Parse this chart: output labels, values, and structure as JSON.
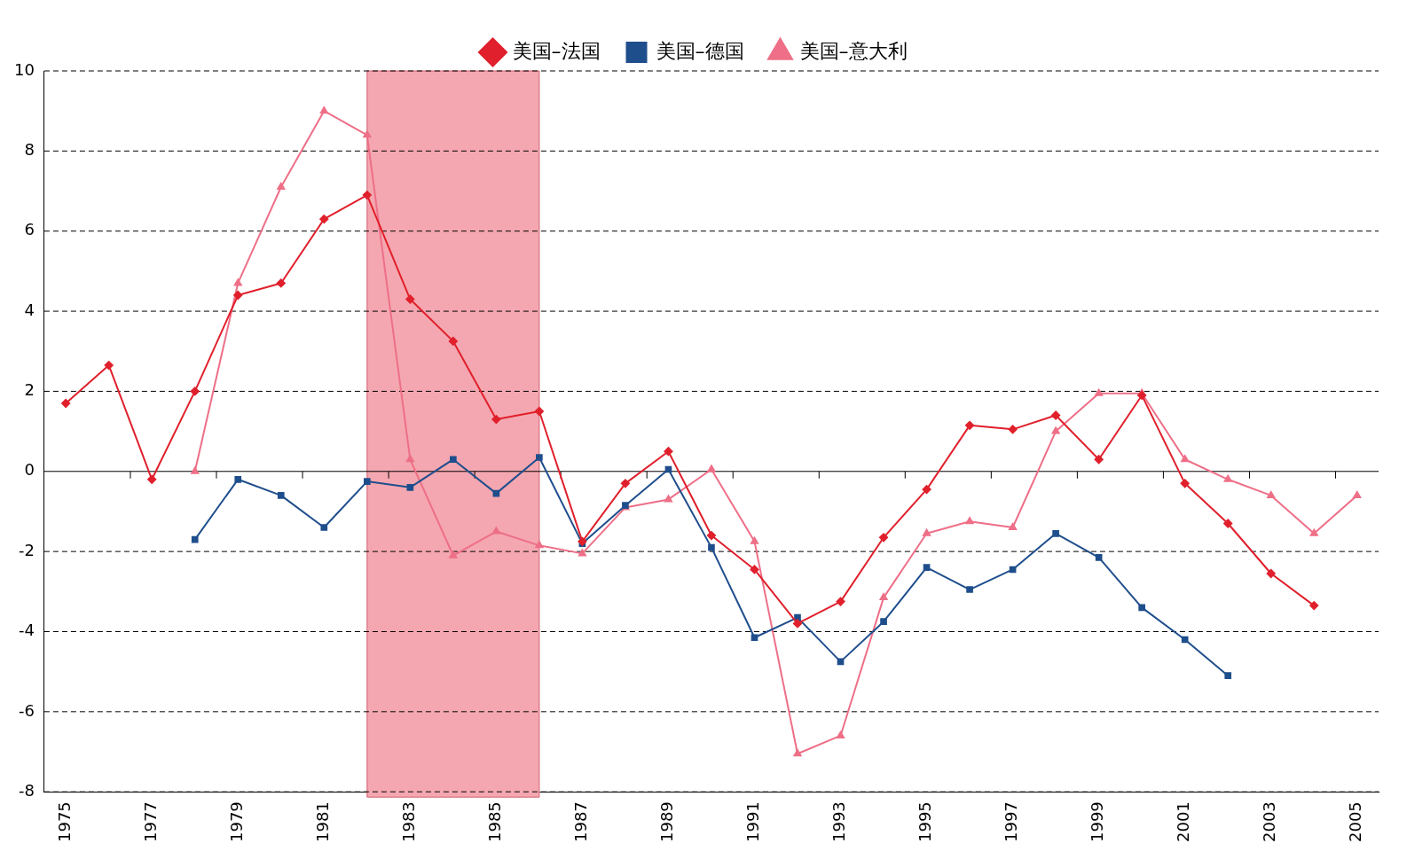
{
  "chart_data": {
    "type": "line",
    "x": [
      1975,
      1976,
      1977,
      1978,
      1979,
      1980,
      1981,
      1982,
      1983,
      1984,
      1985,
      1986,
      1987,
      1988,
      1989,
      1990,
      1991,
      1992,
      1993,
      1994,
      1995,
      1996,
      1997,
      1998,
      1999,
      2000,
      2001,
      2002,
      2003,
      2004,
      2005
    ],
    "series": [
      {
        "name": "美国–法国",
        "color": "#e0202c",
        "marker": "diamond",
        "values": [
          1.7,
          2.65,
          -0.2,
          2.0,
          4.4,
          4.7,
          6.3,
          6.9,
          4.3,
          3.25,
          1.3,
          1.5,
          -1.75,
          -0.3,
          0.5,
          -1.6,
          -2.45,
          -3.8,
          -3.25,
          -1.65,
          -0.45,
          1.15,
          1.05,
          1.4,
          0.3,
          1.9,
          -0.3,
          -1.3,
          -2.55,
          -3.35,
          null
        ]
      },
      {
        "name": "美国–德国",
        "color": "#1f4e8c",
        "marker": "square",
        "values": [
          null,
          null,
          null,
          -1.7,
          -0.2,
          -0.6,
          -1.4,
          -0.25,
          -0.4,
          0.3,
          -0.55,
          0.35,
          -1.8,
          -0.85,
          0.05,
          -1.9,
          -4.15,
          -3.65,
          -4.75,
          -3.75,
          -2.4,
          -2.95,
          -2.45,
          -1.55,
          -2.15,
          -3.4,
          -4.2,
          -5.1,
          null,
          null,
          null
        ]
      },
      {
        "name": "美国–意大利",
        "color": "#ee6f87",
        "marker": "triangle",
        "values": [
          null,
          null,
          null,
          0,
          4.7,
          7.1,
          9.0,
          8.4,
          0.3,
          -2.1,
          -1.5,
          -1.85,
          -2.05,
          -0.9,
          -0.7,
          0.05,
          -1.75,
          -7.05,
          -6.6,
          -3.15,
          -1.55,
          -1.25,
          -1.4,
          1.0,
          1.95,
          1.95,
          0.3,
          -0.2,
          -0.6,
          -1.55,
          -0.6
        ]
      }
    ],
    "xlim": [
      1974.5,
      2005.5
    ],
    "xticks": [
      1975,
      1977,
      1979,
      1981,
      1983,
      1985,
      1987,
      1989,
      1991,
      1993,
      1995,
      1997,
      1999,
      2001,
      2003,
      2005
    ],
    "ylim": [
      -8,
      10
    ],
    "yticks": [
      -8,
      -6,
      -4,
      -2,
      0,
      2,
      4,
      6,
      8,
      10
    ],
    "bands": [
      {
        "axis": "x",
        "from": 1982,
        "to": 1986,
        "color": "#f4a7b0"
      }
    ],
    "grid": "y",
    "legend": "top"
  }
}
